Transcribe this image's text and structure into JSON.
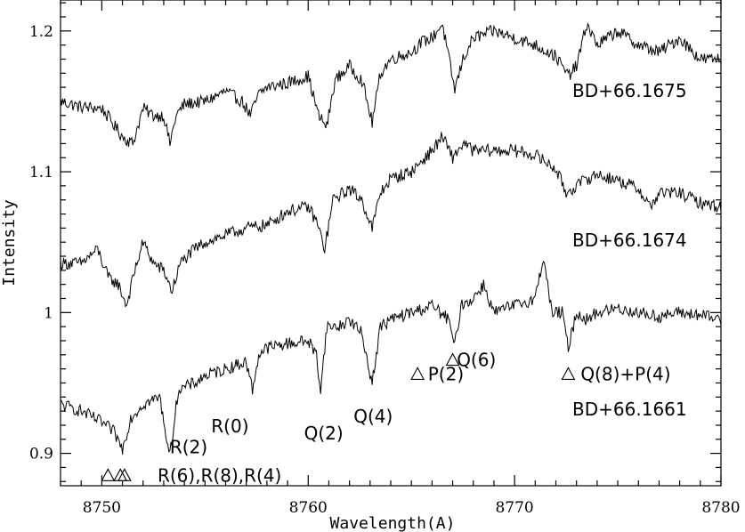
{
  "chart_data": {
    "type": "line",
    "title": "",
    "xlabel": "Wavelength(A)",
    "ylabel": "Intensity",
    "xlim": [
      8748,
      8780
    ],
    "ylim": [
      0.877,
      1.222
    ],
    "x_ticks": [
      8750,
      8760,
      8770,
      8780
    ],
    "x_tick_labels": [
      "8750",
      "8760",
      "8770",
      "8780"
    ],
    "y_ticks": [
      0.9,
      1.0,
      1.1,
      1.2
    ],
    "y_tick_labels": [
      "0.9",
      "1",
      "1.1",
      "1.2"
    ],
    "grid": false,
    "legend": "none",
    "series": [
      {
        "name": "BD+66.1675",
        "x": [
          8748.0,
          8749.0,
          8750.0,
          8751.0,
          8751.5,
          8752.0,
          8752.5,
          8753.0,
          8753.3,
          8753.6,
          8754.0,
          8755.0,
          8756.0,
          8756.8,
          8757.2,
          8757.6,
          8758.0,
          8759.0,
          8760.0,
          8760.5,
          8760.9,
          8761.3,
          8762.0,
          8762.6,
          8763.1,
          8763.5,
          8764.0,
          8765.0,
          8765.5,
          8766.0,
          8766.5,
          8767.1,
          8767.5,
          8768.0,
          8769.0,
          8770.0,
          8771.0,
          8772.0,
          8772.6,
          8773.0,
          8773.5,
          8774.0,
          8775.0,
          8776.0,
          8777.0,
          8778.0,
          8779.0,
          8780.0
        ],
        "values": [
          1.15,
          1.146,
          1.145,
          1.125,
          1.12,
          1.145,
          1.14,
          1.14,
          1.12,
          1.14,
          1.148,
          1.15,
          1.157,
          1.15,
          1.14,
          1.155,
          1.16,
          1.163,
          1.168,
          1.14,
          1.132,
          1.165,
          1.175,
          1.165,
          1.135,
          1.17,
          1.18,
          1.185,
          1.192,
          1.195,
          1.205,
          1.158,
          1.18,
          1.195,
          1.2,
          1.195,
          1.19,
          1.182,
          1.168,
          1.175,
          1.205,
          1.19,
          1.2,
          1.19,
          1.185,
          1.195,
          1.18,
          1.18
        ]
      },
      {
        "name": "BD+66.1674",
        "x": [
          8748.0,
          8749.0,
          8749.8,
          8750.3,
          8750.8,
          8751.2,
          8751.6,
          8752.0,
          8752.5,
          8753.0,
          8753.4,
          8753.8,
          8754.5,
          8755.0,
          8756.0,
          8757.0,
          8758.0,
          8759.0,
          8760.0,
          8760.4,
          8760.8,
          8761.2,
          8762.0,
          8762.6,
          8763.1,
          8763.5,
          8764.0,
          8765.0,
          8766.0,
          8766.5,
          8767.0,
          8767.5,
          8768.0,
          8769.0,
          8770.0,
          8771.0,
          8772.0,
          8772.5,
          8773.0,
          8773.5,
          8774.0,
          8775.0,
          8776.0,
          8776.6,
          8777.0,
          8778.0,
          8779.0,
          8780.0
        ],
        "values": [
          1.035,
          1.035,
          1.045,
          1.025,
          1.02,
          1.005,
          1.03,
          1.05,
          1.035,
          1.03,
          1.015,
          1.035,
          1.045,
          1.05,
          1.055,
          1.06,
          1.062,
          1.072,
          1.075,
          1.065,
          1.045,
          1.08,
          1.088,
          1.08,
          1.06,
          1.085,
          1.095,
          1.1,
          1.115,
          1.125,
          1.11,
          1.12,
          1.115,
          1.115,
          1.115,
          1.112,
          1.102,
          1.085,
          1.09,
          1.095,
          1.098,
          1.094,
          1.088,
          1.075,
          1.085,
          1.085,
          1.078,
          1.075
        ]
      },
      {
        "name": "BD+66.1661",
        "x": [
          8748.0,
          8749.0,
          8750.0,
          8750.6,
          8751.0,
          8751.4,
          8752.0,
          8752.8,
          8753.3,
          8753.7,
          8754.5,
          8755.0,
          8756.0,
          8757.0,
          8757.3,
          8757.6,
          8758.0,
          8759.0,
          8760.0,
          8760.4,
          8760.6,
          8760.9,
          8761.5,
          8762.0,
          8762.6,
          8763.1,
          8763.5,
          8764.0,
          8765.0,
          8766.0,
          8766.8,
          8767.1,
          8767.4,
          8768.0,
          8768.5,
          8769.0,
          8770.0,
          8771.0,
          8771.4,
          8771.8,
          8772.3,
          8772.6,
          8773.0,
          8773.5,
          8774.0,
          8775.0,
          8776.0,
          8777.0,
          8778.0,
          8779.0,
          8780.0
        ],
        "values": [
          0.935,
          0.93,
          0.922,
          0.915,
          0.903,
          0.925,
          0.935,
          0.94,
          0.898,
          0.945,
          0.95,
          0.955,
          0.96,
          0.965,
          0.945,
          0.97,
          0.975,
          0.978,
          0.98,
          0.97,
          0.945,
          0.99,
          0.99,
          0.995,
          0.985,
          0.95,
          0.99,
          0.995,
          1.0,
          1.005,
          0.995,
          0.976,
          1.005,
          1.01,
          1.02,
          1.0,
          1.005,
          1.01,
          1.04,
          1.0,
          1.0,
          0.975,
          1.0,
          0.995,
          1.0,
          1.003,
          1.0,
          0.997,
          1.0,
          0.998,
          0.995
        ]
      }
    ],
    "star_labels": [
      {
        "text": "BD+66.1675",
        "series": 0
      },
      {
        "text": "BD+66.1674",
        "series": 1
      },
      {
        "text": "BD+66.1661",
        "series": 2
      }
    ],
    "annotations": [
      {
        "text": "R(6),R(8),R(4)",
        "x": 8752.7,
        "y": 0.885,
        "triangles": [
          8750.3,
          8750.9,
          8751.1
        ]
      },
      {
        "text": "R(2)",
        "x": 8753.3,
        "y": 0.905,
        "triangles": []
      },
      {
        "text": "R(0)",
        "x": 8755.3,
        "y": 0.92,
        "triangles": []
      },
      {
        "text": "Q(2)",
        "x": 8759.8,
        "y": 0.915,
        "triangles": []
      },
      {
        "text": "Q(4)",
        "x": 8762.2,
        "y": 0.927,
        "triangles": []
      },
      {
        "text": "P(2)",
        "x": 8765.8,
        "y": 0.957,
        "triangles": [
          8765.3
        ]
      },
      {
        "text": "Q(6)",
        "x": 8767.2,
        "y": 0.967,
        "triangles": [
          8767.0
        ]
      },
      {
        "text": "Q(8)+P(4)",
        "x": 8773.2,
        "y": 0.957,
        "triangles": [
          8772.6
        ]
      }
    ]
  }
}
